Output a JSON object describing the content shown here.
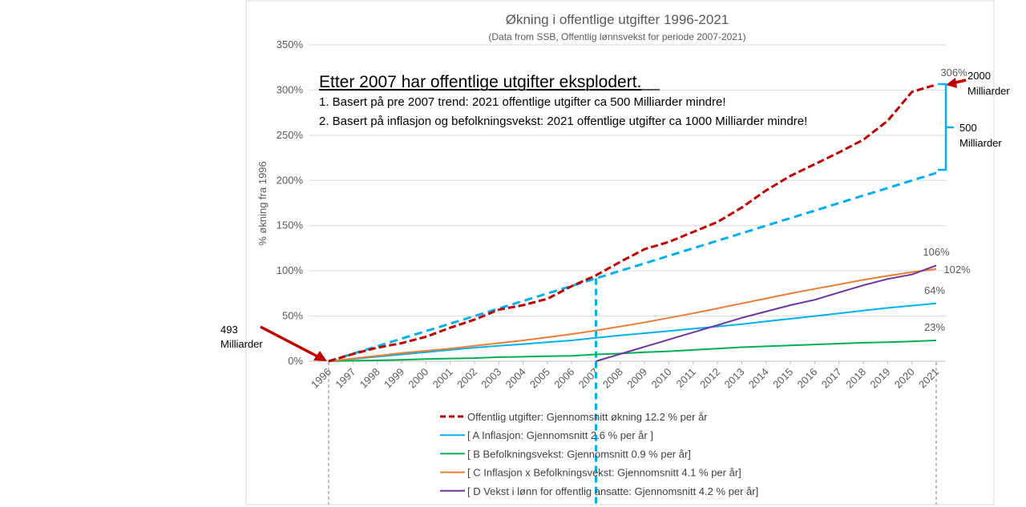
{
  "chart_data": {
    "type": "line",
    "title": "Økning i offentlige utgifter 1996-2021",
    "subtitle": "(Data from SSB, Offentlig lønnsvekst for periode 2007-2021)",
    "ylabel": "% økning fra 1996",
    "xlabel": "",
    "ylim": [
      0,
      350
    ],
    "yticks": [
      0,
      50,
      100,
      150,
      200,
      250,
      300,
      350
    ],
    "ytick_labels": [
      "0%",
      "50%",
      "100%",
      "150%",
      "200%",
      "250%",
      "300%",
      "350%"
    ],
    "x": [
      "1996",
      "1997",
      "1998",
      "1999",
      "2000",
      "2001",
      "2002",
      "2003",
      "2004",
      "2005",
      "2006",
      "2007",
      "2008",
      "2009",
      "2010",
      "2011",
      "2012",
      "2013",
      "2014",
      "2015",
      "2016",
      "2017",
      "2018",
      "2019",
      "2020",
      "2021"
    ],
    "series": [
      {
        "name": "Offentlig utgifter: Gjennomsnitt økning 12.2 % per år",
        "color": "#C00000",
        "dash": true,
        "values": [
          0,
          8,
          15,
          20,
          27,
          37,
          46,
          57,
          62,
          69,
          83,
          95,
          110,
          124,
          132,
          143,
          154,
          170,
          189,
          205,
          218,
          231,
          245,
          266,
          298,
          306
        ]
      },
      {
        "name": "[ A Inflasjon: Gjennomsnitt 2.6 % per år ]",
        "color": "#00B0F0",
        "dash": false,
        "values": [
          0,
          2.5,
          5,
          7.5,
          10,
          12.5,
          15,
          17,
          19,
          21,
          23,
          26,
          28.5,
          31,
          33.5,
          36,
          38.5,
          41,
          44,
          47,
          50,
          53,
          56,
          59,
          61.5,
          64
        ]
      },
      {
        "name": "[ B Befolkningsvekst: Gjennomsnitt 0.9 % per år]",
        "color": "#00B050",
        "dash": false,
        "values": [
          0,
          0.5,
          1,
          1.5,
          2.5,
          3,
          3.5,
          4.5,
          5,
          5.5,
          6,
          7.5,
          8.5,
          10,
          11,
          12.5,
          14,
          15.5,
          16.5,
          17.5,
          18.5,
          19.5,
          20.5,
          21,
          22,
          23
        ]
      },
      {
        "name": "[ C Inflasjon x Befolkningsvekst: Gjennomsnitt 4.1 % per år]",
        "color": "#ED7D31",
        "dash": false,
        "values": [
          0,
          3,
          6,
          9,
          11.5,
          14,
          17,
          20,
          23,
          26.5,
          30,
          34,
          38.5,
          43,
          48,
          53,
          58.5,
          64,
          69.5,
          75,
          80,
          85,
          90,
          94.5,
          98.5,
          102
        ]
      },
      {
        "name": "[ D Vekst i lønn for offentlig ansatte: Gjennomsnitt 4.2 % per år]",
        "color": "#7030A0",
        "dash": false,
        "start_index": 11,
        "values": [
          null,
          null,
          null,
          null,
          null,
          null,
          null,
          null,
          null,
          null,
          null,
          0,
          8,
          16,
          24,
          32,
          40,
          48,
          55,
          62,
          68,
          76,
          84,
          91,
          96,
          106
        ]
      },
      {
        "name": "Trend pre 2007",
        "color": "#00B0F0",
        "dash": true,
        "legend": false,
        "values": [
          0,
          8.3,
          16.6,
          25,
          33.3,
          41.6,
          50,
          58.3,
          66.6,
          75,
          83.3,
          91.6,
          100,
          108.3,
          116.6,
          125,
          133.3,
          141.6,
          150,
          158.3,
          166.6,
          175,
          183.3,
          191.6,
          200,
          208.3
        ]
      }
    ],
    "data_labels": {
      "expenses_end": "306%",
      "salary_end": "106%",
      "combined_end": "102%",
      "inflation_end": "64%",
      "population_end": "23%"
    }
  },
  "annotations": {
    "headline": "Etter 2007 har offentlige utgifter eksplodert.",
    "line1": "1. Basert på pre 2007 trend: 2021 offentlige utgifter ca 500 Milliarder mindre!",
    "line2": "2. Basert på inflasjon og befolkningsvekst: 2021 offentlige utgifter ca 1000 Milliarder mindre!",
    "left_value": "493",
    "left_unit": "Milliarder",
    "top_value": "2000",
    "top_unit": "Milliarder",
    "gap_value": "500",
    "gap_unit": "Milliarder"
  },
  "colors": {
    "arrow": "#C00000",
    "bracket": "#00B0F0",
    "axis_text": "#595959",
    "grid": "#D9D9D9",
    "title": "#595959"
  }
}
